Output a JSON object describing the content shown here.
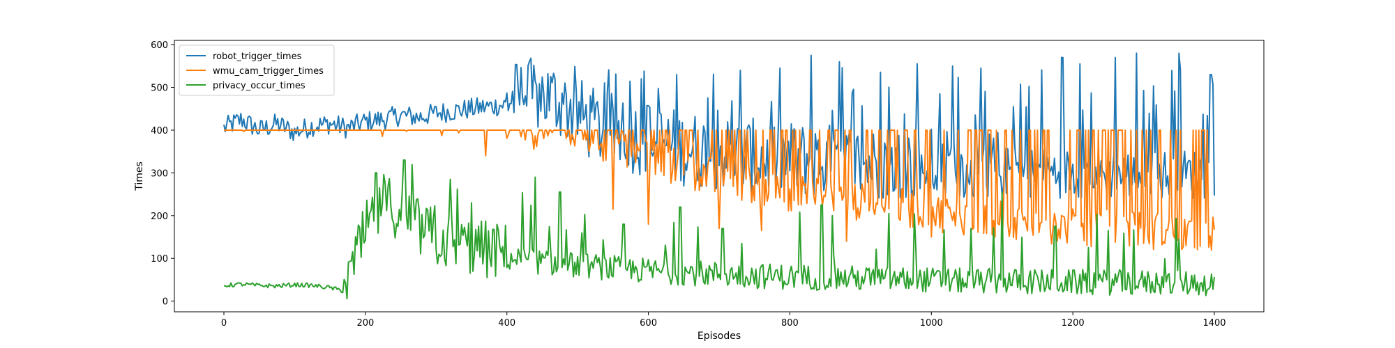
{
  "chart_data": {
    "type": "line",
    "title": "",
    "xlabel": "Episodes",
    "ylabel": "Times",
    "xlim": [
      -70,
      1470
    ],
    "ylim": [
      -25,
      610
    ],
    "xticks": [
      0,
      200,
      400,
      600,
      800,
      1000,
      1200,
      1400
    ],
    "xtick_labels": [
      "0",
      "200",
      "400",
      "600",
      "800",
      "1000",
      "1200",
      "1400"
    ],
    "yticks": [
      0,
      100,
      200,
      300,
      400,
      500,
      600
    ],
    "ytick_labels": [
      "0",
      "100",
      "200",
      "300",
      "400",
      "500",
      "600"
    ],
    "grid": false,
    "legend_position": "upper left",
    "series": [
      {
        "name": "robot_trigger_times",
        "color": "#1f77b4",
        "x": [
          0,
          25,
          50,
          75,
          100,
          125,
          150,
          175,
          200,
          225,
          250,
          275,
          300,
          325,
          350,
          375,
          400,
          425,
          450,
          475,
          500,
          525,
          550,
          575,
          600,
          625,
          650,
          675,
          700,
          725,
          750,
          775,
          800,
          825,
          850,
          875,
          900,
          925,
          950,
          975,
          1000,
          1025,
          1050,
          1075,
          1100,
          1125,
          1150,
          1175,
          1200,
          1225,
          1250,
          1275,
          1300,
          1325,
          1350,
          1375,
          1400
        ],
        "y": [
          400,
          420,
          395,
          410,
          390,
          405,
          410,
          400,
          415,
          420,
          430,
          425,
          435,
          440,
          445,
          450,
          455,
          460,
          465,
          450,
          420,
          390,
          380,
          370,
          360,
          350,
          340,
          335,
          330,
          325,
          320,
          318,
          315,
          312,
          310,
          308,
          305,
          303,
          300,
          300,
          298,
          296,
          295,
          293,
          292,
          291,
          290,
          289,
          288,
          287,
          287,
          286,
          286,
          285,
          285,
          285,
          285
        ],
        "peaks": [
          {
            "x": 440,
            "y": 515
          },
          {
            "x": 590,
            "y": 520
          },
          {
            "x": 640,
            "y": 530
          },
          {
            "x": 730,
            "y": 540
          },
          {
            "x": 830,
            "y": 575
          },
          {
            "x": 870,
            "y": 560
          },
          {
            "x": 980,
            "y": 555
          },
          {
            "x": 1030,
            "y": 550
          },
          {
            "x": 1070,
            "y": 545
          },
          {
            "x": 1185,
            "y": 570
          },
          {
            "x": 1210,
            "y": 555
          },
          {
            "x": 1260,
            "y": 570
          },
          {
            "x": 1290,
            "y": 580
          },
          {
            "x": 1350,
            "y": 580
          },
          {
            "x": 1395,
            "y": 530
          }
        ]
      },
      {
        "name": "wmu_cam_trigger_times",
        "color": "#ff7f0e",
        "x": [
          0,
          25,
          50,
          75,
          100,
          125,
          150,
          175,
          200,
          225,
          250,
          275,
          300,
          325,
          350,
          375,
          400,
          425,
          450,
          475,
          500,
          525,
          550,
          575,
          600,
          625,
          650,
          675,
          700,
          725,
          750,
          775,
          800,
          825,
          850,
          875,
          900,
          925,
          950,
          975,
          1000,
          1025,
          1050,
          1075,
          1100,
          1125,
          1150,
          1175,
          1200,
          1225,
          1250,
          1275,
          1300,
          1325,
          1350,
          1375,
          1400
        ],
        "y": [
          400,
          400,
          400,
          400,
          400,
          400,
          400,
          400,
          400,
          400,
          400,
          400,
          400,
          400,
          400,
          400,
          400,
          400,
          400,
          400,
          395,
          380,
          360,
          345,
          330,
          320,
          310,
          300,
          290,
          280,
          270,
          262,
          255,
          250,
          244,
          238,
          232,
          226,
          220,
          214,
          208,
          203,
          198,
          194,
          190,
          186,
          182,
          178,
          175,
          172,
          170,
          168,
          166,
          164,
          162,
          160,
          155
        ],
        "dips": [
          {
            "x": 370,
            "y": 340
          },
          {
            "x": 550,
            "y": 215
          },
          {
            "x": 600,
            "y": 180
          },
          {
            "x": 700,
            "y": 170
          },
          {
            "x": 760,
            "y": 165
          },
          {
            "x": 880,
            "y": 140
          },
          {
            "x": 1000,
            "y": 150
          },
          {
            "x": 1100,
            "y": 140
          },
          {
            "x": 1220,
            "y": 130
          },
          {
            "x": 1300,
            "y": 135
          },
          {
            "x": 1360,
            "y": 130
          }
        ]
      },
      {
        "name": "privacy_occur_times",
        "color": "#2ca02c",
        "x": [
          0,
          25,
          50,
          75,
          100,
          125,
          150,
          175,
          200,
          225,
          250,
          275,
          300,
          325,
          350,
          375,
          400,
          425,
          450,
          475,
          500,
          525,
          550,
          575,
          600,
          625,
          650,
          675,
          700,
          725,
          750,
          775,
          800,
          825,
          850,
          875,
          900,
          925,
          950,
          975,
          1000,
          1025,
          1050,
          1075,
          1100,
          1125,
          1150,
          1175,
          1200,
          1225,
          1250,
          1275,
          1300,
          1325,
          1350,
          1375,
          1400
        ],
        "y": [
          35,
          38,
          35,
          34,
          37,
          35,
          30,
          20,
          140,
          210,
          190,
          150,
          125,
          115,
          105,
          98,
          92,
          88,
          82,
          78,
          75,
          72,
          68,
          65,
          62,
          60,
          58,
          56,
          54,
          52,
          50,
          49,
          48,
          47,
          46,
          45,
          44,
          43,
          42,
          41,
          40,
          39,
          38,
          38,
          37,
          37,
          36,
          36,
          35,
          35,
          35,
          34,
          34,
          34,
          33,
          33,
          32
        ],
        "peaks": [
          {
            "x": 215,
            "y": 300
          },
          {
            "x": 255,
            "y": 330
          },
          {
            "x": 320,
            "y": 285
          },
          {
            "x": 350,
            "y": 230
          },
          {
            "x": 440,
            "y": 290
          },
          {
            "x": 475,
            "y": 255
          },
          {
            "x": 565,
            "y": 180
          },
          {
            "x": 645,
            "y": 220
          },
          {
            "x": 705,
            "y": 170
          },
          {
            "x": 845,
            "y": 225
          },
          {
            "x": 940,
            "y": 205
          },
          {
            "x": 1100,
            "y": 255
          },
          {
            "x": 1175,
            "y": 175
          },
          {
            "x": 1250,
            "y": 165
          },
          {
            "x": 1350,
            "y": 145
          }
        ]
      }
    ]
  }
}
